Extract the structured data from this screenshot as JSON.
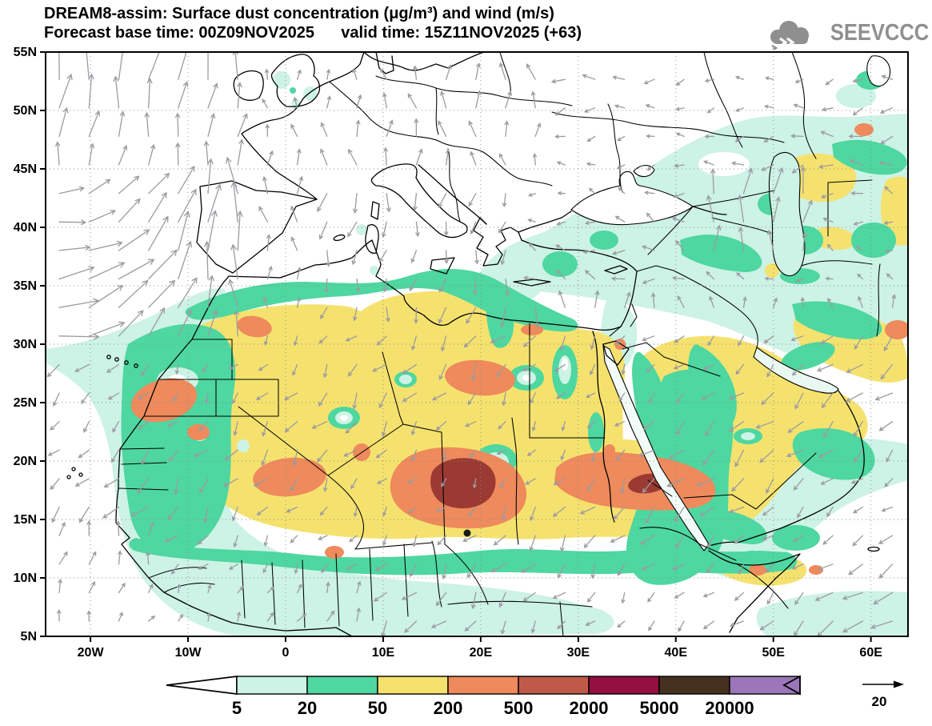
{
  "header": {
    "title_line1": "DREAM8-assim: Surface dust concentration (μg/m³) and wind (m/s)",
    "title_line2": "Forecast base time: 00Z09NOV2025      valid time: 15Z11NOV2025 (+63)"
  },
  "logo": {
    "text": "SEEVCCC"
  },
  "chart_data": {
    "type": "filled-contour-map",
    "model": "DREAM8-assim",
    "title": "Surface dust concentration (μg/m³) and wind (m/s)",
    "base_time": "00Z09NOV2025",
    "valid_time": "15Z11NOV2025",
    "lead_hours": "+63",
    "units": "μg/m³",
    "wind_units": "m/s",
    "axes": {
      "lat_range": [
        5,
        55
      ],
      "lon_range": [
        -24.6,
        63.8
      ],
      "lat_ticks": [
        {
          "v": 55,
          "label": "55N"
        },
        {
          "v": 50,
          "label": "50N"
        },
        {
          "v": 45,
          "label": "45N"
        },
        {
          "v": 40,
          "label": "40N"
        },
        {
          "v": 35,
          "label": "35N"
        },
        {
          "v": 30,
          "label": "30N"
        },
        {
          "v": 25,
          "label": "25N"
        },
        {
          "v": 20,
          "label": "20N"
        },
        {
          "v": 15,
          "label": "15N"
        },
        {
          "v": 10,
          "label": "10N"
        },
        {
          "v": 5,
          "label": "5N"
        }
      ],
      "lon_ticks": [
        {
          "v": -20,
          "label": "20W"
        },
        {
          "v": -10,
          "label": "10W"
        },
        {
          "v": 0,
          "label": "0"
        },
        {
          "v": 10,
          "label": "10E"
        },
        {
          "v": 20,
          "label": "20E"
        },
        {
          "v": 30,
          "label": "30E"
        },
        {
          "v": 40,
          "label": "40E"
        },
        {
          "v": 50,
          "label": "50E"
        },
        {
          "v": 60,
          "label": "60E"
        }
      ],
      "grid": "dotted"
    },
    "colorbar": {
      "levels": [
        5,
        20,
        50,
        200,
        500,
        2000,
        5000,
        20000
      ],
      "colors": [
        "#ffffff",
        "#cdf2e6",
        "#4ed7a0",
        "#f5e26e",
        "#ee8a5c",
        "#c05a48",
        "#931040",
        "#463120",
        "#9b76b8"
      ]
    },
    "wind": {
      "reference_value": "20",
      "arrow_color": "#9b9ba1"
    },
    "palette": {
      "map_dark_red": "#9a3a33",
      "coast": "#000000",
      "grid": "#8a8a8a"
    },
    "dust_features": [
      {
        "region": "Sahara belt from West Africa to the Red Sea (~10-32N)",
        "range": "50-200 μg/m³ background with 200-500 μg/m³ plumes over Mali, central Algeria, central Libya, Niger-Chad and Sudan"
      },
      {
        "region": "Southern Libya / northern Chad core and eastern Sudan core",
        "range": "500-2000 μg/m³"
      },
      {
        "region": "Maghreb-Mediterranean coastal fringe, Sahel band, western and southern Arabia, Caucasus-Caspian patches",
        "range": "20-50 μg/m³"
      },
      {
        "region": "Black Sea-Caspian sector, eastern Mediterranean, Gulf of Guinea and NW Indian Ocean fringes",
        "range": "5-20 μg/m³"
      },
      {
        "region": "NW Caspian lowlands and eastern Iran edge",
        "range": "50-200 μg/m³ patches"
      }
    ]
  }
}
